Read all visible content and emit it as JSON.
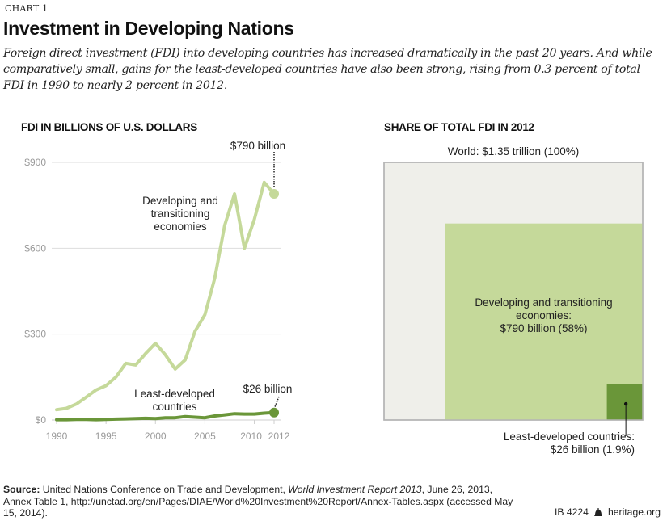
{
  "header": {
    "kicker": "CHART 1",
    "title": "Investment in Developing Nations",
    "subtitle": "Foreign direct investment (FDI) into developing countries has increased dramatically in the past 20 years. And while comparatively small, gains for the least-developed countries have also been strong, rising from 0.3 percent of total FDI in 1990 to nearly 2 percent in 2012."
  },
  "colors": {
    "developing": "#c5d99a",
    "least_developed": "#6a9639",
    "world_box": "#efefea",
    "world_border": "#b5b5b5",
    "grid": "#dddddd",
    "tick_text": "#9a9a9a"
  },
  "chart_data": [
    {
      "type": "line",
      "title": "FDI IN BILLIONS OF U.S. DOLLARS",
      "xlabel": "",
      "ylabel": "",
      "ylim": [
        0,
        900
      ],
      "xlim": [
        1990,
        2012
      ],
      "grid": true,
      "y_ticks": [
        0,
        300,
        600,
        900
      ],
      "y_tick_labels": [
        "$0",
        "$300",
        "$600",
        "$900"
      ],
      "x_ticks": [
        1990,
        1995,
        2000,
        2005,
        2010,
        2012
      ],
      "x_tick_labels": [
        "1990",
        "1995",
        "2000",
        "2005",
        "2010",
        "2012"
      ],
      "x": [
        1990,
        1991,
        1992,
        1993,
        1994,
        1995,
        1996,
        1997,
        1998,
        1999,
        2000,
        2001,
        2002,
        2003,
        2004,
        2005,
        2006,
        2007,
        2008,
        2009,
        2010,
        2011,
        2012
      ],
      "series": [
        {
          "name": "Developing and transitioning economies",
          "label_lines": [
            "Developing and",
            "transitioning",
            "economies"
          ],
          "values": [
            36,
            41,
            56,
            80,
            105,
            120,
            150,
            198,
            192,
            232,
            268,
            228,
            178,
            210,
            310,
            368,
            495,
            680,
            790,
            600,
            700,
            830,
            790
          ],
          "end_label": "$790 billion"
        },
        {
          "name": "Least-developed countries",
          "label_lines": [
            "Least-developed",
            "countries"
          ],
          "values": [
            1,
            1,
            2,
            2,
            1,
            2,
            3,
            4,
            5,
            6,
            5,
            8,
            8,
            12,
            10,
            8,
            14,
            18,
            22,
            21,
            21,
            24,
            26
          ],
          "end_label": "$26 billion"
        }
      ]
    },
    {
      "type": "treemap",
      "title": "SHARE OF TOTAL FDI IN 2012",
      "items": [
        {
          "name": "World",
          "label": "World: $1.35 trillion (100%)",
          "value_billion": 1350,
          "share_pct": 100
        },
        {
          "name": "Developing and transitioning economies",
          "label_lines": [
            "Developing and transitioning",
            "economies:",
            "$790 billion (58%)"
          ],
          "value_billion": 790,
          "share_pct": 58
        },
        {
          "name": "Least-developed countries",
          "label_lines": [
            "Least-developed countries:",
            "$26 billion (1.9%)"
          ],
          "value_billion": 26,
          "share_pct": 1.9
        }
      ]
    }
  ],
  "footer": {
    "source_label": "Source:",
    "source_text_1": " United Nations Conference on Trade and Development, ",
    "source_italic": "World Investment Report 2013",
    "source_text_2": ", June 26, 2013, Annex Table 1, http://unctad.org/en/Pages/DIAE/World%20Investment%20Report/Annex-Tables.aspx (accessed May 15, 2014).",
    "report_id": "IB 4224",
    "site": "heritage.org"
  }
}
